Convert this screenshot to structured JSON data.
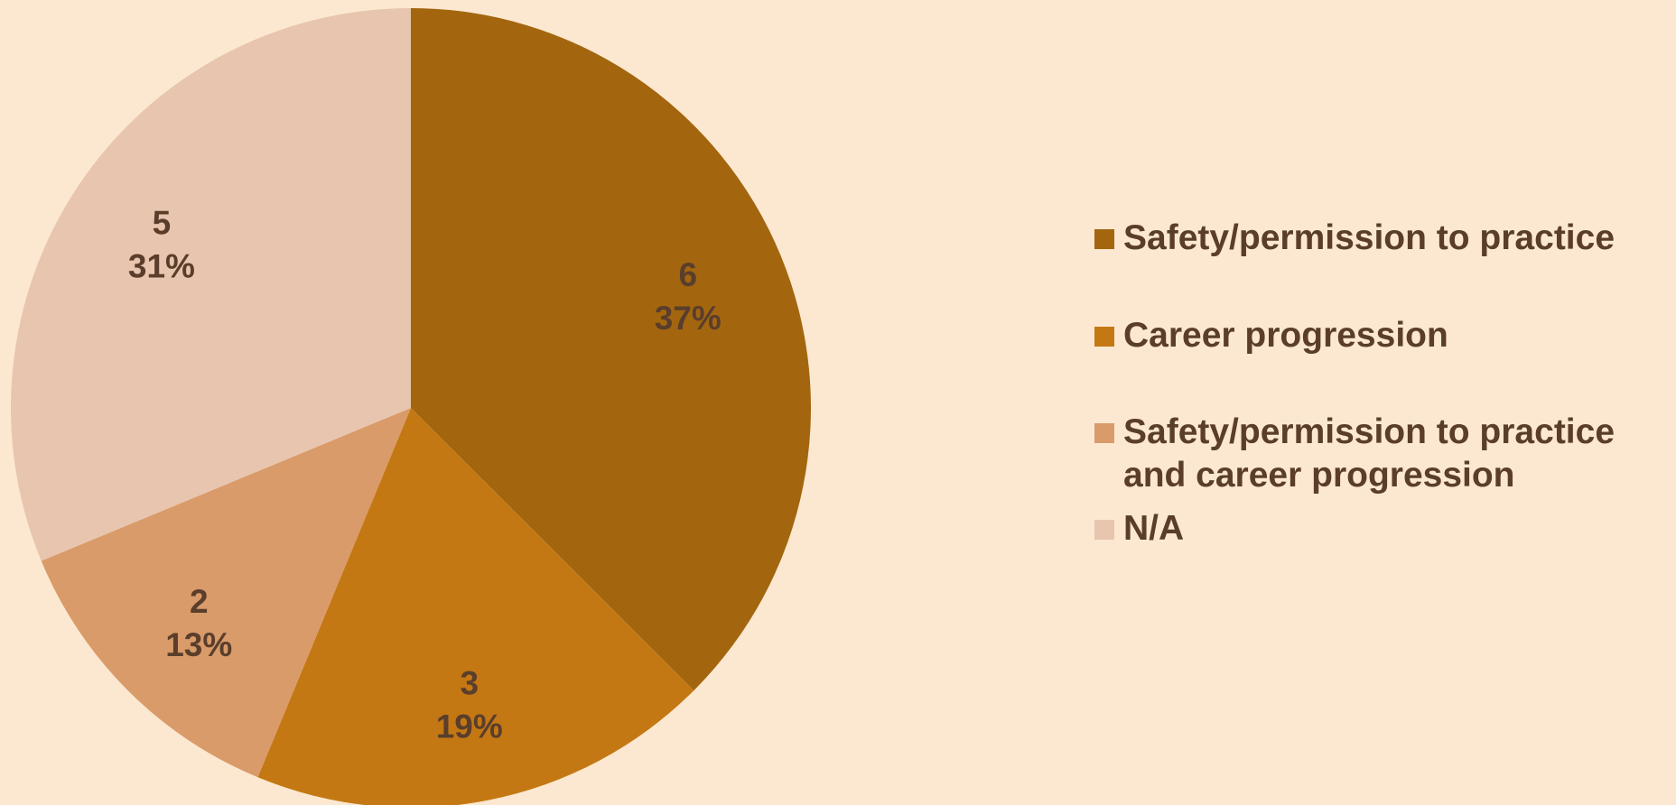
{
  "chart_data": {
    "type": "pie",
    "title": "",
    "legend_position": "right",
    "categories": [
      "Safety/permission to practice",
      "Career progression",
      "Safety/permission to practice and career progression",
      "N/A"
    ],
    "values": [
      6,
      3,
      2,
      5
    ],
    "percent_labels": [
      "37%",
      "19%",
      "13%",
      "31%"
    ],
    "colors": [
      "#A3660F",
      "#C47813",
      "#D99B6A",
      "#E8C5AE"
    ],
    "label_color": "#5A3E2B"
  }
}
